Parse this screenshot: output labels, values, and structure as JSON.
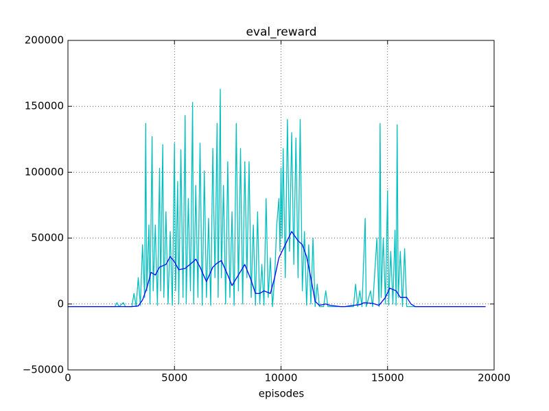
{
  "chart_data": {
    "type": "line",
    "title": "eval_reward",
    "x_label": "episodes",
    "xlim": [
      0,
      20000
    ],
    "ylim": [
      -50000,
      200000
    ],
    "xticks": [
      0,
      5000,
      10000,
      15000,
      20000
    ],
    "yticks": [
      {
        "value": -50000,
        "label": "−50000"
      },
      0,
      50000,
      100000,
      150000,
      200000
    ],
    "grid": true,
    "series": [
      {
        "color": "#00bfbf",
        "x": [
          0,
          2200,
          2300,
          2400,
          2600,
          2700,
          3000,
          3100,
          3200,
          3300,
          3400,
          3500,
          3600,
          3650,
          3700,
          3800,
          3850,
          3950,
          4000,
          4100,
          4200,
          4300,
          4350,
          4450,
          4500,
          4600,
          4700,
          4800,
          4900,
          5000,
          5050,
          5150,
          5200,
          5300,
          5400,
          5500,
          5550,
          5650,
          5750,
          5850,
          5900,
          6000,
          6100,
          6200,
          6300,
          6400,
          6500,
          6600,
          6700,
          6800,
          6900,
          7000,
          7050,
          7150,
          7200,
          7300,
          7400,
          7500,
          7600,
          7700,
          7800,
          7900,
          8000,
          8100,
          8200,
          8300,
          8400,
          8500,
          8600,
          8700,
          8800,
          8900,
          9000,
          9100,
          9200,
          9300,
          9400,
          9500,
          9600,
          9700,
          9800,
          9900,
          9950,
          10000,
          10050,
          10100,
          10200,
          10300,
          10400,
          10500,
          10600,
          10700,
          10800,
          10900,
          11000,
          11100,
          11200,
          11300,
          11400,
          11500,
          11600,
          11700,
          11800,
          12000,
          12100,
          12200,
          13400,
          13500,
          13600,
          13700,
          13800,
          13950,
          14000,
          14200,
          14300,
          14500,
          14600,
          14650,
          14700,
          14800,
          14900,
          15000,
          15050,
          15150,
          15250,
          15350,
          15400,
          15450,
          15500,
          15600,
          15700,
          15800,
          15900,
          19600
        ],
        "values": [
          -2000,
          -2000,
          1000,
          -2000,
          1000,
          -2000,
          -2000,
          8000,
          -2000,
          20000,
          -1000,
          45000,
          5000,
          137000,
          10000,
          60000,
          0,
          127000,
          10000,
          60000,
          -1000,
          103000,
          10000,
          121000,
          5000,
          70000,
          0,
          55000,
          -1000,
          122000,
          10000,
          93000,
          0,
          117000,
          5000,
          143000,
          0,
          80000,
          10000,
          153000,
          0,
          90000,
          5000,
          122000,
          -1000,
          101000,
          5000,
          65000,
          -1000,
          118000,
          20000,
          137000,
          5000,
          163000,
          20000,
          90000,
          0,
          108000,
          5000,
          70000,
          -1000,
          137000,
          10000,
          118000,
          0,
          108000,
          20000,
          108000,
          5000,
          60000,
          -1000,
          70000,
          0,
          30000,
          -1000,
          80000,
          5000,
          35000,
          -2000,
          20000,
          60000,
          80000,
          40000,
          103000,
          50000,
          118000,
          20000,
          140000,
          40000,
          130000,
          30000,
          126000,
          20000,
          140000,
          10000,
          55000,
          -1000,
          45000,
          0,
          50000,
          -2000,
          15000,
          -2000,
          -2000,
          10000,
          -2000,
          -2000,
          15000,
          -2000,
          10000,
          -2000,
          65000,
          -2000,
          10000,
          -2000,
          50000,
          -2000,
          137000,
          5000,
          50000,
          0,
          86000,
          -1000,
          40000,
          0,
          56000,
          -1000,
          136000,
          5000,
          40000,
          -2000,
          42000,
          -2000,
          -2000
        ]
      },
      {
        "color": "#0000ff",
        "x": [
          0,
          2000,
          3000,
          3300,
          3500,
          3700,
          3900,
          4100,
          4300,
          4600,
          4800,
          5000,
          5200,
          5500,
          5800,
          6000,
          6200,
          6500,
          6800,
          7000,
          7200,
          7500,
          7700,
          8000,
          8300,
          8600,
          8800,
          9000,
          9200,
          9500,
          9700,
          9900,
          10200,
          10500,
          10800,
          11000,
          11200,
          11400,
          11600,
          11800,
          12100,
          12300,
          12800,
          13000,
          13400,
          13700,
          13900,
          14300,
          14600,
          14900,
          15100,
          15400,
          15600,
          15900,
          16100,
          16300,
          19600
        ],
        "values": [
          -2000,
          -2000,
          -2000,
          -1500,
          3000,
          12000,
          24000,
          22000,
          28000,
          30000,
          36000,
          32000,
          26000,
          27000,
          31000,
          34000,
          28000,
          17000,
          28000,
          31000,
          33000,
          22000,
          14000,
          22000,
          30000,
          18000,
          8000,
          8000,
          10000,
          8000,
          20000,
          35000,
          45000,
          55000,
          48000,
          45000,
          36000,
          20000,
          2000,
          -1000,
          0,
          -1000,
          -2000,
          -2000,
          -1000,
          -500,
          1000,
          500,
          -1000,
          5000,
          12000,
          10000,
          5000,
          5000,
          0,
          -2000,
          -2000
        ]
      }
    ]
  }
}
